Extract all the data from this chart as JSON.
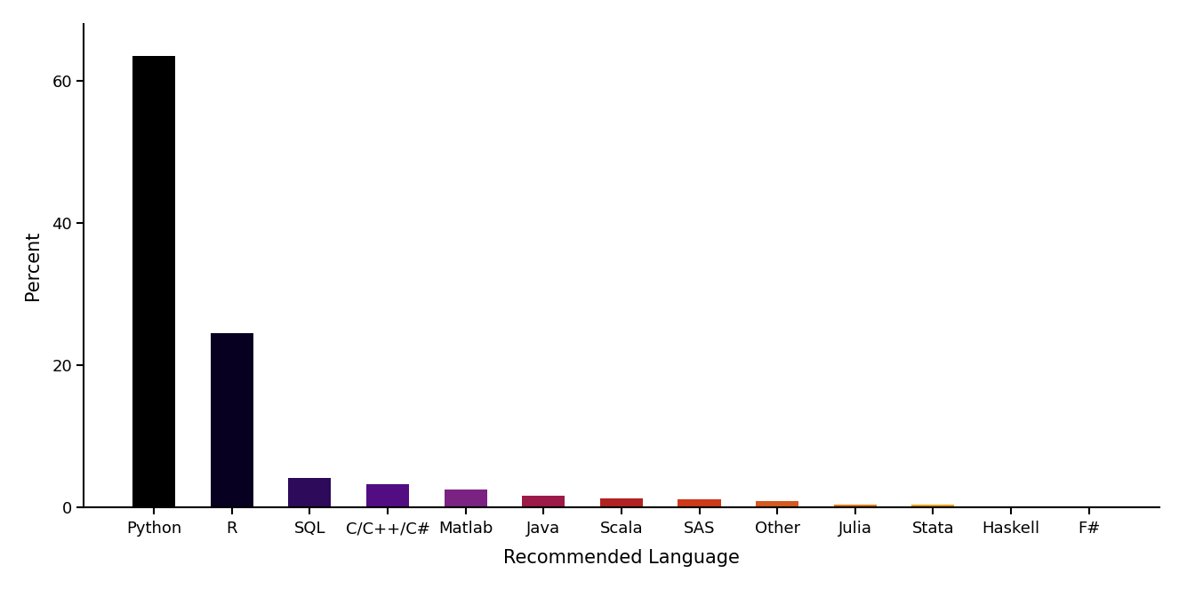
{
  "categories": [
    "Python",
    "R",
    "SQL",
    "C/C++/C#",
    "Matlab",
    "Java",
    "Scala",
    "SAS",
    "Other",
    "Julia",
    "Stata",
    "Haskell",
    "F#"
  ],
  "values": [
    63.5,
    24.5,
    4.2,
    3.3,
    2.5,
    1.6,
    1.3,
    1.2,
    0.95,
    0.45,
    0.35,
    0.15,
    0.05
  ],
  "bar_colors": [
    "#000000",
    "#080020",
    "#2d0a5a",
    "#520d82",
    "#7b2382",
    "#9b1a48",
    "#b22222",
    "#cc3a1a",
    "#d45a20",
    "#e07818",
    "#e8a018",
    "#d4b800",
    "#f5e882"
  ],
  "xlabel": "Recommended Language",
  "ylabel": "Percent",
  "ylim": [
    0,
    68
  ],
  "yticks": [
    0,
    20,
    40,
    60
  ],
  "background_color": "#ffffff",
  "label_fontsize": 15,
  "tick_fontsize": 13,
  "bar_width": 0.55
}
